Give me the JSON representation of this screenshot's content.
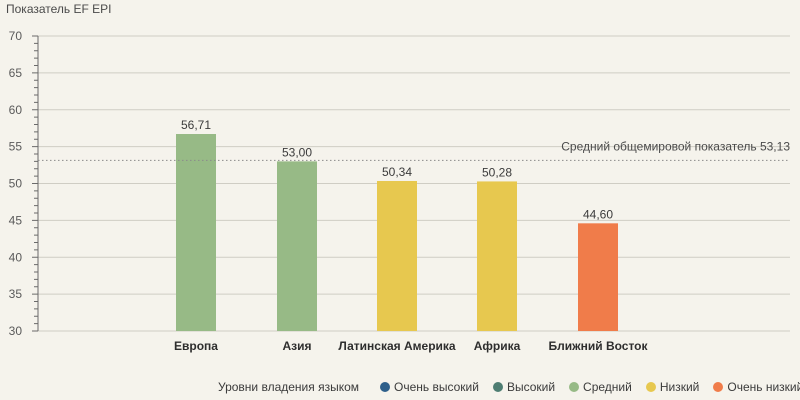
{
  "chart_data": {
    "type": "bar",
    "ylabel": "Показатель EF EPI",
    "ylim": [
      30,
      70
    ],
    "yticks": [
      30,
      35,
      40,
      45,
      50,
      55,
      60,
      65,
      70
    ],
    "grid": "horizontal",
    "categories": [
      "Европа",
      "Азия",
      "Латинская Америка",
      "Африка",
      "Ближний Восток"
    ],
    "values": [
      56.71,
      53.0,
      50.34,
      50.28,
      44.6
    ],
    "data_labels": [
      "56,71",
      "53,00",
      "50,34",
      "50,28",
      "44,60"
    ],
    "bar_levels": [
      "Средний",
      "Средний",
      "Низкий",
      "Низкий",
      "Очень низкий"
    ],
    "reference_line": {
      "value": 53.13,
      "label": "Средний общемировой показатель 53,13",
      "style": "dotted"
    },
    "legend": {
      "title": "Уровни владения языком",
      "placement": "bottom",
      "items": [
        {
          "label": "Очень высокий",
          "color": "#2e5f8a"
        },
        {
          "label": "Высокий",
          "color": "#4e7d72"
        },
        {
          "label": "Средний",
          "color": "#97ba86"
        },
        {
          "label": "Низкий",
          "color": "#e7c84f"
        },
        {
          "label": "Очень низкий",
          "color": "#f07c4a"
        }
      ]
    }
  }
}
